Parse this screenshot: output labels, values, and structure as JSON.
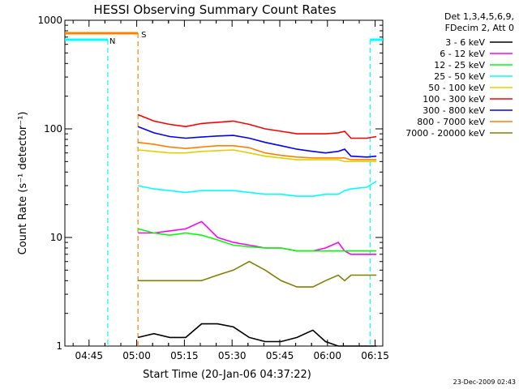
{
  "chart_data": {
    "type": "line",
    "title": "HESSI Observing Summary Count Rates",
    "xlabel": "Start Time (20-Jan-06 04:37:22)",
    "ylabel": "Count Rate (s⁻¹ detector⁻¹)",
    "yscale": "log",
    "ylim": [
      1,
      1000
    ],
    "xlim_minutes": [
      0,
      100
    ],
    "x_tick_labels": [
      "04:45",
      "05:00",
      "05:15",
      "05:30",
      "05:45",
      "06:00",
      "06:15"
    ],
    "x_tick_minutes": [
      7.6,
      22.6,
      37.6,
      52.6,
      67.6,
      82.6,
      97.6
    ],
    "y_tick_labels": [
      "1",
      "10",
      "100",
      "1000"
    ],
    "legend_header": [
      "Det 1,3,4,5,6,9,",
      "FDecim 2, Att 0"
    ],
    "legend_position": "right",
    "timestamp": "23-Dec-2009 02:43",
    "annotations": {
      "night_label": "N",
      "saa_label": "S",
      "night_color": "#00ffff",
      "saa_color": "#ff8000",
      "night_intervals_minutes": [
        [
          0,
          13.5
        ],
        [
          96,
          100
        ]
      ],
      "saa_interval_minutes": [
        0,
        23
      ]
    },
    "x_minutes": [
      23,
      28,
      33,
      38,
      43,
      48,
      53,
      58,
      63,
      68,
      73,
      78,
      82,
      86,
      88,
      90,
      95,
      98
    ],
    "series": [
      {
        "name": "3 - 6 keV",
        "color": "#000000",
        "values": [
          1.2,
          1.3,
          1.2,
          1.2,
          1.6,
          1.6,
          1.5,
          1.2,
          1.1,
          1.1,
          1.2,
          1.4,
          1.1,
          1,
          1,
          1,
          1,
          1
        ]
      },
      {
        "name": "6 - 12 keV",
        "color": "#ff00ff",
        "values": [
          11,
          11,
          11.5,
          12,
          14,
          10,
          9,
          8.5,
          8,
          8,
          7.5,
          7.5,
          8,
          9,
          7.5,
          7,
          7,
          7
        ]
      },
      {
        "name": "12 - 25 keV",
        "color": "#00ff00",
        "values": [
          12,
          11,
          10.5,
          11,
          10.5,
          9.5,
          8.5,
          8.2,
          8,
          8,
          7.5,
          7.5,
          7.5,
          7.5,
          7.5,
          7.5,
          7.5,
          7.5
        ]
      },
      {
        "name": "25 - 50 keV",
        "color": "#00ffff",
        "values": [
          30,
          28,
          27,
          26,
          27,
          27,
          27,
          26,
          25,
          25,
          24,
          24,
          25,
          25,
          27,
          28,
          29,
          33
        ]
      },
      {
        "name": "50 - 100 keV",
        "color": "#e0d000",
        "values": [
          64,
          62,
          60,
          60,
          62,
          63,
          64,
          60,
          56,
          54,
          52,
          52,
          52,
          52,
          50,
          50,
          50,
          50
        ]
      },
      {
        "name": "100 - 300 keV",
        "color": "#ff0000",
        "values": [
          135,
          118,
          110,
          105,
          112,
          115,
          118,
          110,
          100,
          95,
          90,
          90,
          90,
          92,
          95,
          82,
          82,
          85
        ]
      },
      {
        "name": "300 - 800 keV",
        "color": "#0000ff",
        "values": [
          105,
          92,
          85,
          82,
          84,
          86,
          87,
          82,
          75,
          70,
          65,
          62,
          60,
          62,
          65,
          56,
          55,
          56
        ]
      },
      {
        "name": "800 - 7000 keV",
        "color": "#ff7f00",
        "values": [
          75,
          72,
          68,
          66,
          68,
          70,
          70,
          67,
          60,
          57,
          55,
          54,
          54,
          54,
          54,
          52,
          52,
          52
        ]
      },
      {
        "name": "7000 - 20000 keV",
        "color": "#808000",
        "values": [
          4,
          4,
          4,
          4,
          4,
          4.5,
          5,
          6,
          5,
          4,
          3.5,
          3.5,
          4,
          4.5,
          4,
          4.5,
          4.5,
          4.5
        ]
      }
    ]
  }
}
